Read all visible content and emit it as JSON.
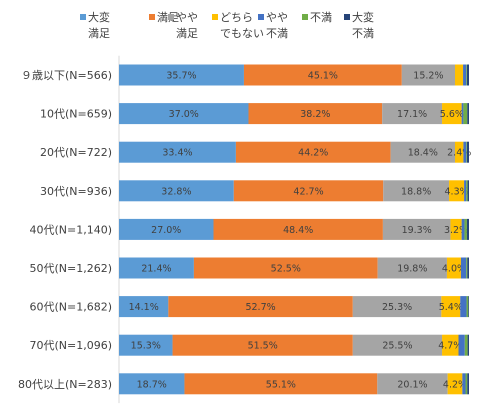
{
  "chart_data": {
    "type": "bar",
    "orientation": "horizontal",
    "stacked": true,
    "percent_stacked": true,
    "legend_position": "top",
    "grid": false,
    "xlim": [
      0,
      100
    ],
    "categories": [
      "９歳以下(N=566)",
      "10代(N=659)",
      "20代(N=722)",
      "30代(N=936)",
      "40代(N=1,140)",
      "50代(N=1,262)",
      "60代(N=1,682)",
      "70代(N=1,096)",
      "80代以上(N=283)"
    ],
    "series": [
      {
        "name": "大変満足",
        "legend_lines": [
          "大変",
          "満足"
        ],
        "color": "#5B9BD5",
        "values": [
          35.7,
          37.0,
          33.4,
          32.8,
          27.0,
          21.4,
          14.1,
          15.3,
          18.7
        ],
        "labels": [
          "35.7%",
          "37.0%",
          "33.4%",
          "32.8%",
          "27.0%",
          "21.4%",
          "14.1%",
          "15.3%",
          "18.7%"
        ]
      },
      {
        "name": "満足",
        "legend_lines": [
          "満足"
        ],
        "color": "#ED7D31",
        "values": [
          45.1,
          38.2,
          44.2,
          42.7,
          48.4,
          52.5,
          52.7,
          51.5,
          55.1
        ],
        "labels": [
          "45.1%",
          "38.2%",
          "44.2%",
          "42.7%",
          "48.4%",
          "52.5%",
          "52.7%",
          "51.5%",
          "55.1%"
        ]
      },
      {
        "name": "やや満足",
        "legend_lines": [
          "やや",
          "満足"
        ],
        "color": "#A5A5A5",
        "values": [
          15.2,
          17.1,
          18.4,
          18.8,
          19.3,
          19.8,
          25.3,
          25.5,
          20.1
        ],
        "labels": [
          "15.2%",
          "17.1%",
          "18.4%",
          "18.8%",
          "19.3%",
          "19.8%",
          "25.3%",
          "25.5%",
          "20.1%"
        ]
      },
      {
        "name": "どちらでもない",
        "legend_lines": [
          "どちら",
          "でもない"
        ],
        "color": "#FFC000",
        "values": [
          2.3,
          5.6,
          2.4,
          4.3,
          3.2,
          4.0,
          5.4,
          4.7,
          4.2
        ],
        "labels": [
          "",
          "5.6%",
          "2.4%",
          "4.3%",
          "3.2%",
          "4.0%",
          "5.4%",
          "4.7%",
          "4.2%"
        ]
      },
      {
        "name": "やや不満",
        "legend_lines": [
          "やや",
          "不満"
        ],
        "color": "#4472C4",
        "values": [
          0.9,
          0.5,
          0.8,
          0.6,
          0.8,
          1.5,
          1.8,
          1.8,
          0.9
        ],
        "labels": [
          "",
          "",
          "",
          "",
          "",
          "",
          "",
          "",
          ""
        ]
      },
      {
        "name": "不満",
        "legend_lines": [
          "不満"
        ],
        "color": "#70AD47",
        "values": [
          0.2,
          1.1,
          0.2,
          0.4,
          0.7,
          0.3,
          0.5,
          0.8,
          0.5
        ],
        "labels": [
          "",
          "",
          "",
          "",
          "",
          "",
          "",
          "",
          ""
        ]
      },
      {
        "name": "大変不満",
        "legend_lines": [
          "大変",
          "不満"
        ],
        "color": "#264478",
        "values": [
          0.6,
          0.5,
          0.6,
          0.4,
          0.6,
          0.5,
          0.2,
          0.4,
          0.5
        ],
        "labels": [
          "",
          "",
          "",
          "",
          "",
          "",
          "",
          "",
          ""
        ]
      }
    ]
  }
}
